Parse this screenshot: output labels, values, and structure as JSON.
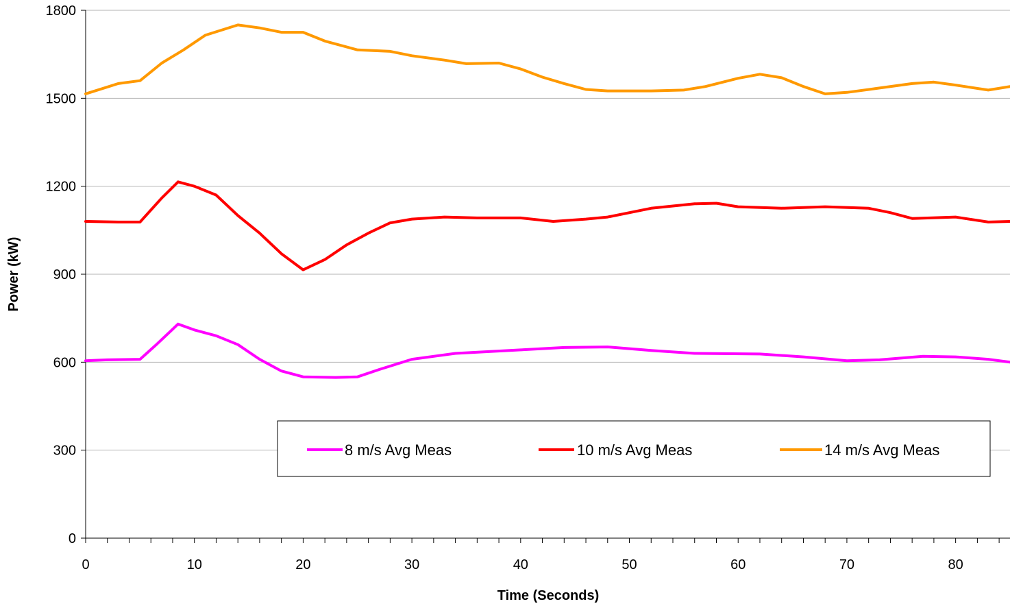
{
  "chart_data": {
    "type": "line",
    "title": "",
    "xlabel": "Time (Seconds)",
    "ylabel": "Power (kW)",
    "xlim": [
      0,
      85
    ],
    "ylim": [
      0,
      1800
    ],
    "xticks": [
      0,
      10,
      20,
      30,
      40,
      50,
      60,
      70,
      80
    ],
    "yticks": [
      0,
      300,
      600,
      900,
      1200,
      1500,
      1800
    ],
    "grid": "horizontal",
    "legend_position": "bottom-right",
    "series": [
      {
        "name": "8 m/s Avg Meas",
        "color": "#ff00ff",
        "points": [
          [
            0,
            605
          ],
          [
            2,
            608
          ],
          [
            5,
            610
          ],
          [
            6.5,
            660
          ],
          [
            8.5,
            730
          ],
          [
            10,
            710
          ],
          [
            12,
            690
          ],
          [
            14,
            660
          ],
          [
            16,
            610
          ],
          [
            18,
            570
          ],
          [
            20,
            550
          ],
          [
            23,
            548
          ],
          [
            25,
            550
          ],
          [
            27,
            575
          ],
          [
            30,
            610
          ],
          [
            34,
            630
          ],
          [
            40,
            642
          ],
          [
            44,
            650
          ],
          [
            48,
            652
          ],
          [
            52,
            640
          ],
          [
            56,
            630
          ],
          [
            62,
            628
          ],
          [
            66,
            618
          ],
          [
            70,
            605
          ],
          [
            73,
            608
          ],
          [
            77,
            620
          ],
          [
            80,
            618
          ],
          [
            83,
            610
          ],
          [
            85,
            600
          ]
        ]
      },
      {
        "name": "10 m/s Avg Meas",
        "color": "#ff0000",
        "points": [
          [
            0,
            1080
          ],
          [
            3,
            1078
          ],
          [
            5,
            1078
          ],
          [
            7,
            1160
          ],
          [
            8.5,
            1215
          ],
          [
            10,
            1200
          ],
          [
            12,
            1170
          ],
          [
            14,
            1100
          ],
          [
            16,
            1040
          ],
          [
            18,
            970
          ],
          [
            20,
            915
          ],
          [
            22,
            950
          ],
          [
            24,
            1000
          ],
          [
            26,
            1040
          ],
          [
            28,
            1075
          ],
          [
            30,
            1088
          ],
          [
            33,
            1095
          ],
          [
            36,
            1092
          ],
          [
            40,
            1092
          ],
          [
            43,
            1080
          ],
          [
            46,
            1088
          ],
          [
            48,
            1095
          ],
          [
            52,
            1125
          ],
          [
            56,
            1140
          ],
          [
            58,
            1142
          ],
          [
            60,
            1130
          ],
          [
            64,
            1125
          ],
          [
            68,
            1130
          ],
          [
            72,
            1125
          ],
          [
            74,
            1110
          ],
          [
            76,
            1090
          ],
          [
            80,
            1095
          ],
          [
            83,
            1078
          ],
          [
            85,
            1080
          ]
        ]
      },
      {
        "name": "14 m/s Avg Meas",
        "color": "#ff9900",
        "points": [
          [
            0,
            1515
          ],
          [
            3,
            1550
          ],
          [
            5,
            1560
          ],
          [
            7,
            1620
          ],
          [
            9,
            1665
          ],
          [
            11,
            1715
          ],
          [
            14,
            1750
          ],
          [
            16,
            1740
          ],
          [
            18,
            1725
          ],
          [
            20,
            1725
          ],
          [
            22,
            1695
          ],
          [
            25,
            1665
          ],
          [
            28,
            1660
          ],
          [
            30,
            1645
          ],
          [
            33,
            1630
          ],
          [
            35,
            1618
          ],
          [
            38,
            1620
          ],
          [
            40,
            1600
          ],
          [
            42,
            1572
          ],
          [
            44,
            1550
          ],
          [
            46,
            1530
          ],
          [
            48,
            1525
          ],
          [
            52,
            1525
          ],
          [
            55,
            1528
          ],
          [
            57,
            1540
          ],
          [
            60,
            1568
          ],
          [
            62,
            1582
          ],
          [
            64,
            1570
          ],
          [
            66,
            1540
          ],
          [
            68,
            1515
          ],
          [
            70,
            1520
          ],
          [
            73,
            1535
          ],
          [
            76,
            1550
          ],
          [
            78,
            1555
          ],
          [
            80,
            1545
          ],
          [
            83,
            1528
          ],
          [
            85,
            1540
          ]
        ]
      }
    ]
  }
}
